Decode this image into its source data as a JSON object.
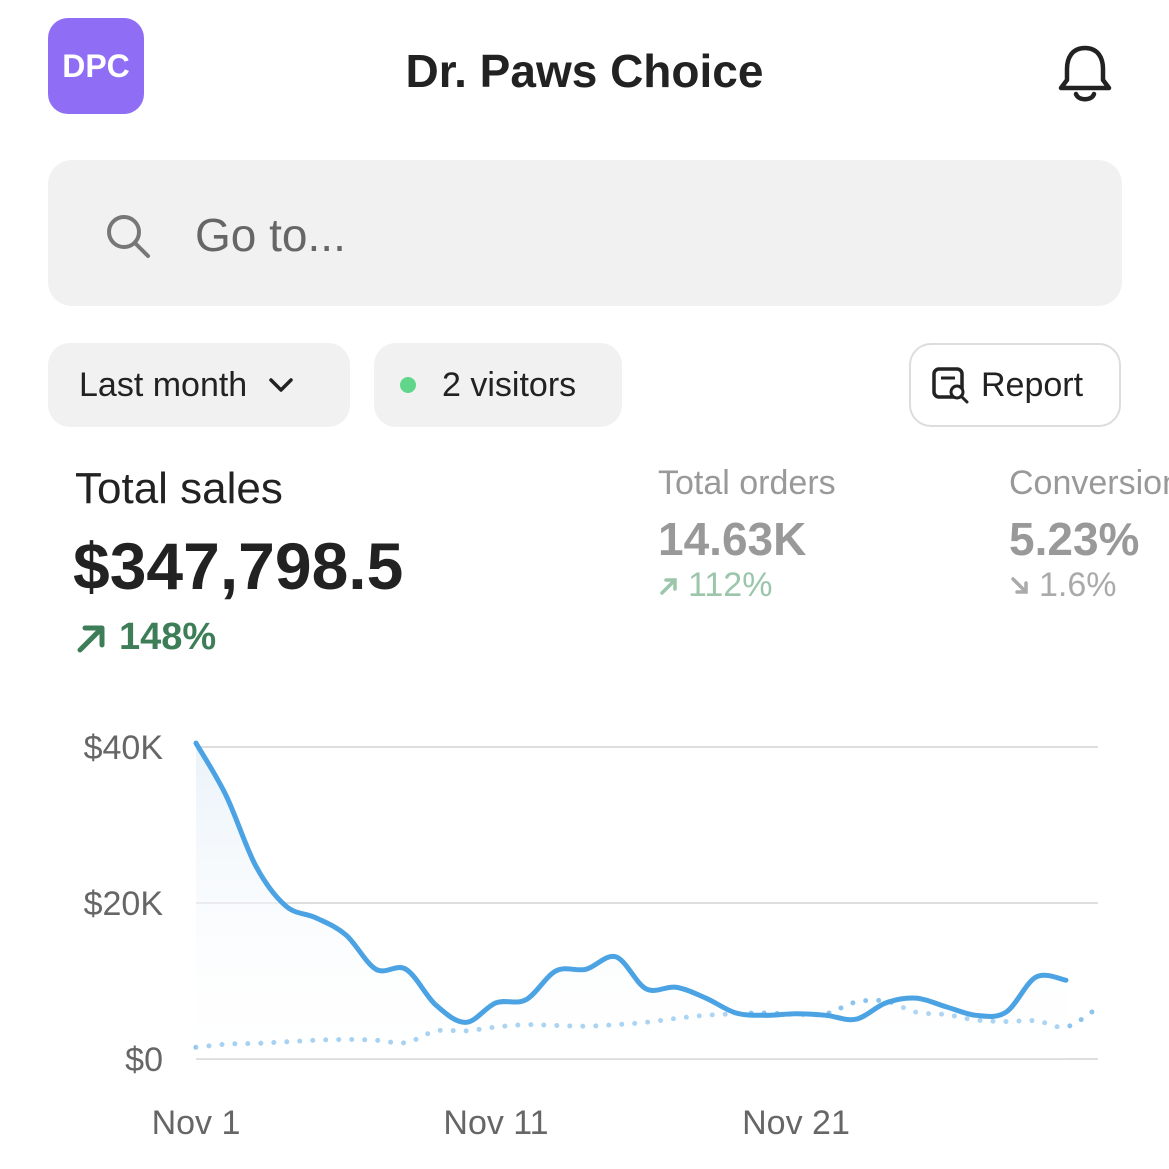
{
  "header": {
    "logo": "DPC",
    "title": "Dr. Paws Choice"
  },
  "search": {
    "placeholder": "Go to..."
  },
  "filters": {
    "period": "Last month",
    "visitors": "2 visitors",
    "report": "Report"
  },
  "metrics": [
    {
      "label": "Total sales",
      "value": "$347,798.5",
      "change": "148%"
    },
    {
      "label": "Total orders",
      "value": "14.63K",
      "change": "112%"
    },
    {
      "label": "Conversion",
      "value": "5.23%",
      "change": "1.6%"
    }
  ],
  "chart_data": {
    "type": "line",
    "categories": [
      "Nov 1",
      null,
      null,
      null,
      null,
      null,
      null,
      null,
      null,
      null,
      "Nov 11",
      null,
      null,
      null,
      null,
      null,
      null,
      null,
      null,
      null,
      "Nov 21",
      null,
      null,
      null,
      null,
      null,
      null,
      null,
      null,
      null,
      null
    ],
    "series": [
      {
        "color": "#4ba3e3",
        "style": "solid",
        "area": true,
        "values": [
          40500,
          33800,
          24700,
          19600,
          18100,
          15900,
          11500,
          11500,
          6900,
          4700,
          7200,
          7600,
          11300,
          11500,
          13100,
          9000,
          9200,
          7800,
          5900,
          5600,
          5800,
          5600,
          5100,
          7200,
          7800,
          6700,
          5600,
          6000,
          10500,
          10100,
          null
        ]
      },
      {
        "color": "#8cc4ee",
        "style": "dotted",
        "area": false,
        "values": [
          1500,
          1900,
          2000,
          2200,
          2400,
          2500,
          2400,
          2100,
          3600,
          3600,
          4100,
          4400,
          4300,
          4200,
          4400,
          4700,
          5200,
          5600,
          5800,
          5900,
          5700,
          5800,
          7300,
          7400,
          6000,
          5700,
          5000,
          4800,
          4900,
          4100,
          6400
        ]
      }
    ],
    "ylim": [
      0,
      40000
    ],
    "yticks": [
      {
        "value": 0,
        "label": "$0"
      },
      {
        "value": 20000,
        "label": "$20K"
      },
      {
        "value": 40000,
        "label": "$40K"
      }
    ],
    "grid": true
  }
}
